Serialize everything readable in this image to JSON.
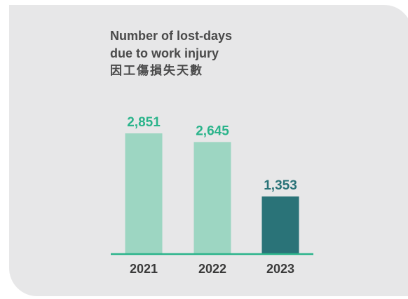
{
  "colors": {
    "background": "#e7e7e8",
    "title": "#4a4a4a",
    "bar_light": "#9dd6c2",
    "bar_dark": "#2a7378",
    "value_label_light": "#2bb48b",
    "value_label_dark": "#2a7378",
    "baseline": "#2bb48b"
  },
  "chart_data": {
    "type": "bar",
    "title_lines": [
      "Number of lost-days",
      "due to work injury",
      "因工傷損失天數"
    ],
    "categories": [
      "2021",
      "2022",
      "2023"
    ],
    "values": [
      2851,
      2645,
      1353
    ],
    "value_labels": [
      "2,851",
      "2,645",
      "1,353"
    ],
    "highlight_index": 2,
    "xlabel": "",
    "ylabel": "",
    "ylim": [
      0,
      3000
    ],
    "grid": false,
    "legend": "none"
  }
}
